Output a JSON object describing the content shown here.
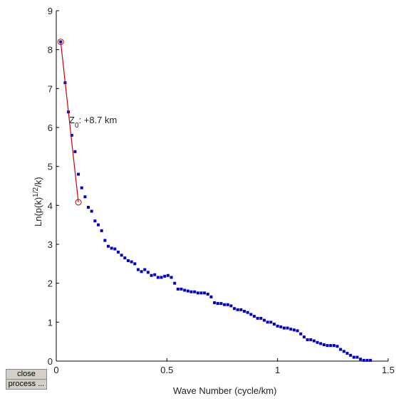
{
  "chart_data": {
    "type": "scatter",
    "x_label": "Wave Number (cycle/km)",
    "y_label": {
      "main": "Ln(p(k)",
      "sup": "1/2",
      "tail": "/k)"
    },
    "annotation": {
      "main": "Z",
      "sub": "0",
      "tail": ": +8.7 km"
    },
    "xlim": [
      0,
      1.5
    ],
    "xticks": [
      0,
      0.5,
      1,
      1.5
    ],
    "ylim": [
      0,
      9
    ],
    "yticks": [
      0,
      1,
      2,
      3,
      4,
      5,
      6,
      7,
      8,
      9
    ],
    "color": "#0000cc",
    "x": [
      0.02,
      0.04,
      0.055,
      0.07,
      0.085,
      0.1,
      0.115,
      0.13,
      0.145,
      0.16,
      0.175,
      0.19,
      0.205,
      0.22,
      0.235,
      0.25,
      0.265,
      0.28,
      0.295,
      0.31,
      0.325,
      0.34,
      0.355,
      0.37,
      0.385,
      0.4,
      0.415,
      0.43,
      0.445,
      0.46,
      0.475,
      0.49,
      0.505,
      0.52,
      0.535,
      0.55,
      0.565,
      0.58,
      0.595,
      0.61,
      0.625,
      0.64,
      0.655,
      0.67,
      0.685,
      0.7,
      0.715,
      0.73,
      0.745,
      0.76,
      0.775,
      0.79,
      0.805,
      0.82,
      0.835,
      0.85,
      0.865,
      0.88,
      0.895,
      0.91,
      0.925,
      0.94,
      0.955,
      0.97,
      0.985,
      1.0,
      1.015,
      1.03,
      1.045,
      1.06,
      1.075,
      1.09,
      1.105,
      1.12,
      1.135,
      1.15,
      1.165,
      1.18,
      1.195,
      1.21,
      1.225,
      1.24,
      1.255,
      1.27,
      1.285,
      1.3,
      1.315,
      1.33,
      1.345,
      1.36,
      1.375,
      1.39,
      1.405,
      1.42
    ],
    "values": [
      8.2,
      7.15,
      6.4,
      5.8,
      5.38,
      4.8,
      4.45,
      4.22,
      3.95,
      3.85,
      3.6,
      3.5,
      3.35,
      3.1,
      2.95,
      2.9,
      2.88,
      2.8,
      2.72,
      2.65,
      2.58,
      2.55,
      2.5,
      2.35,
      2.3,
      2.35,
      2.28,
      2.2,
      2.22,
      2.15,
      2.15,
      2.18,
      2.2,
      2.15,
      2.0,
      1.85,
      1.85,
      1.82,
      1.8,
      1.78,
      1.78,
      1.75,
      1.75,
      1.75,
      1.72,
      1.65,
      1.5,
      1.48,
      1.48,
      1.45,
      1.45,
      1.42,
      1.35,
      1.32,
      1.32,
      1.28,
      1.25,
      1.2,
      1.15,
      1.1,
      1.1,
      1.05,
      1.0,
      1.0,
      0.95,
      0.9,
      0.88,
      0.85,
      0.85,
      0.82,
      0.8,
      0.78,
      0.7,
      0.62,
      0.55,
      0.55,
      0.52,
      0.48,
      0.45,
      0.42,
      0.4,
      0.4,
      0.4,
      0.38,
      0.3,
      0.25,
      0.2,
      0.15,
      0.1,
      0.1,
      0.05,
      0.02,
      0.02,
      0.02
    ],
    "fit_line": {
      "x": [
        0.02,
        0.1
      ],
      "values": [
        8.2,
        4.08
      ],
      "color": "#cc0000"
    }
  },
  "buttons": [
    "close",
    "process ..."
  ]
}
